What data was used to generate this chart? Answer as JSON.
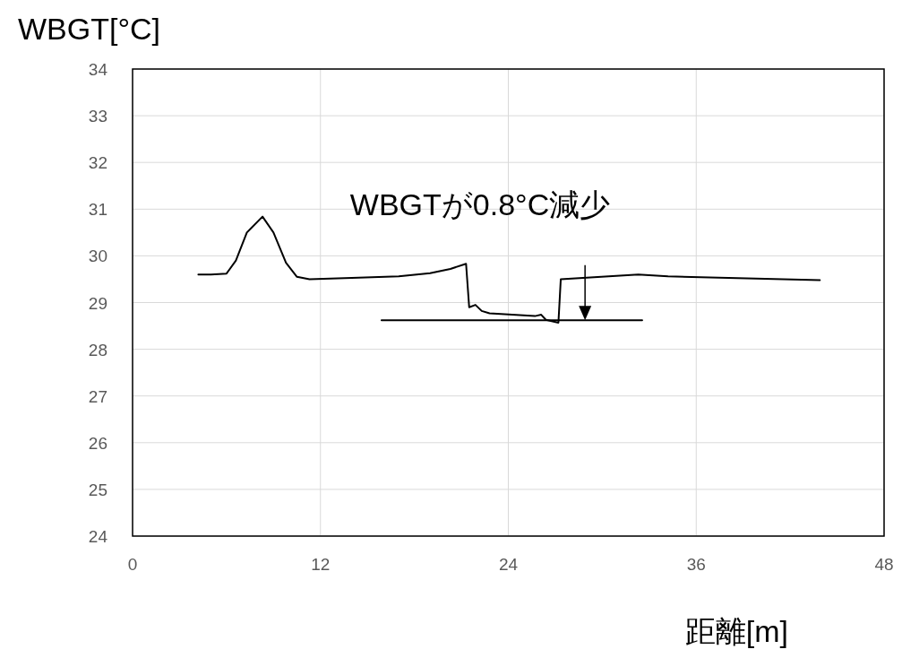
{
  "chart_data": {
    "type": "line",
    "ylabel": "WBGT[°C]",
    "xlabel": "距離[m]",
    "annotations": [
      "WBGTが0.8°C減少"
    ],
    "series": [
      {
        "color": "#000000",
        "x": [
          4.2,
          5.0,
          6.0,
          6.6,
          7.3,
          8.3,
          9.0,
          9.8,
          10.5,
          11.3,
          14.0,
          17.0,
          19.0,
          20.3,
          21.3,
          21.5,
          21.9,
          22.3,
          22.8,
          25.7,
          26.1,
          26.4,
          27.2,
          27.35,
          32.3,
          34.2,
          43.9
        ],
        "values": [
          29.6,
          29.6,
          29.62,
          29.9,
          30.5,
          30.84,
          30.5,
          29.85,
          29.55,
          29.5,
          29.53,
          29.56,
          29.63,
          29.72,
          29.83,
          28.9,
          28.95,
          28.82,
          28.77,
          28.71,
          28.74,
          28.63,
          28.57,
          29.5,
          29.6,
          29.56,
          29.48
        ]
      },
      {
        "color": "#000000",
        "x": [
          15.9,
          32.55
        ],
        "values": [
          28.62,
          28.62
        ]
      }
    ],
    "xlim": [
      0,
      48
    ],
    "xticks": [
      0,
      12,
      24,
      36,
      48
    ],
    "ylim": [
      24,
      34
    ],
    "yticks": [
      24,
      25,
      26,
      27,
      28,
      29,
      30,
      31,
      32,
      33,
      34
    ],
    "grid": true
  }
}
